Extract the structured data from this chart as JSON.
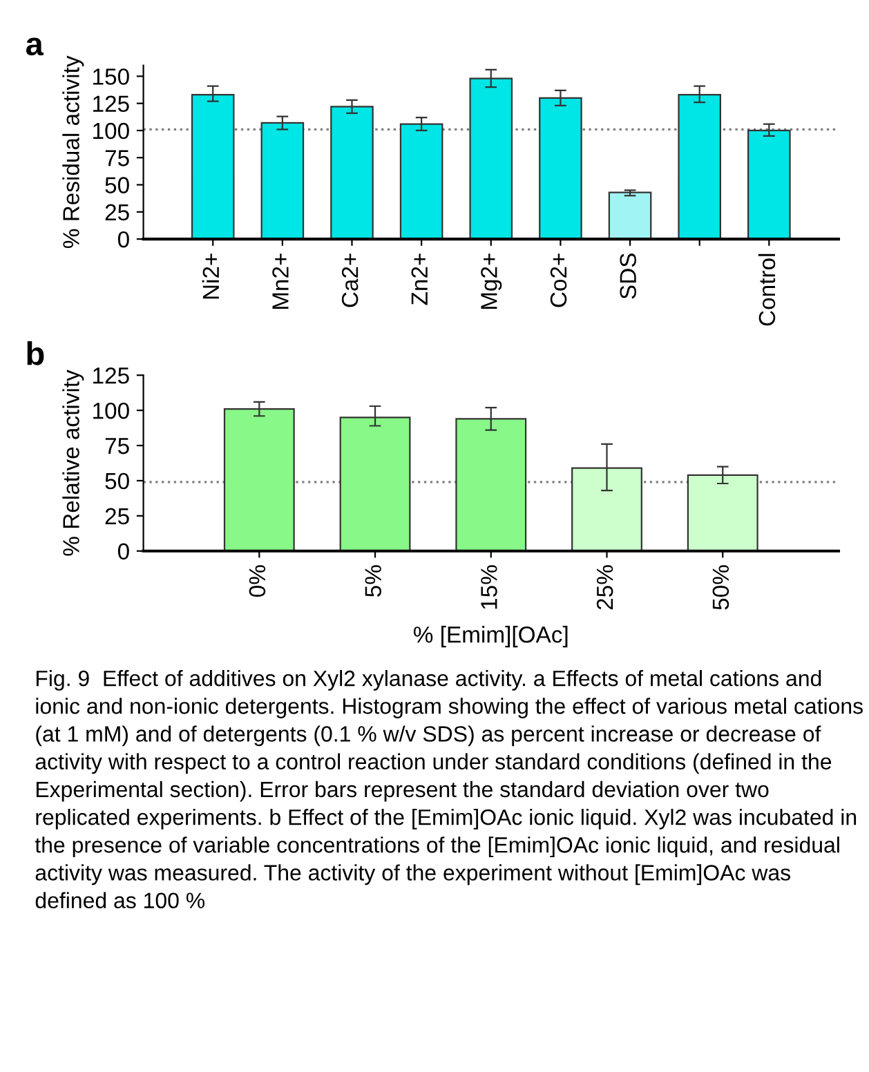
{
  "chart_data": [
    {
      "type": "bar",
      "title": "a",
      "ylabel": "% Residual activity",
      "categories": [
        "Ni2+",
        "Mn2+",
        "Ca2+",
        "Zn2+",
        "Mg2+",
        "Co2+",
        "SDS",
        null,
        "Control"
      ],
      "values": [
        133,
        107,
        122,
        106,
        148,
        130,
        43,
        133,
        100
      ],
      "errors": [
        [
          127,
          141
        ],
        [
          101,
          113
        ],
        [
          116,
          128
        ],
        [
          100,
          112
        ],
        [
          140,
          156
        ],
        [
          123,
          137
        ],
        [
          40,
          45
        ],
        [
          126,
          141
        ],
        [
          95,
          106
        ]
      ],
      "colors": [
        "#00e5e5",
        "#00e5e5",
        "#00e5e5",
        "#00e5e5",
        "#00e5e5",
        "#00e5e5",
        "#a0f4f4",
        "#00e5e5",
        "#00e5e5"
      ],
      "ylim": [
        0,
        160
      ],
      "yticks": [
        0,
        25,
        50,
        75,
        100,
        125,
        150
      ],
      "ref_lines": [
        {
          "axis": "y",
          "value": 101,
          "label": null,
          "color": "#808080",
          "line_style": "dotted"
        }
      ],
      "grid": false,
      "legend": false
    },
    {
      "type": "bar",
      "title": "b",
      "ylabel": "% Relative activity",
      "xlabel": "% [Emim][OAc]",
      "categories": [
        "0%",
        "5%",
        "15%",
        "25%",
        "50%"
      ],
      "values": [
        101,
        95,
        94,
        59,
        54
      ],
      "errors": [
        [
          96,
          106
        ],
        [
          89,
          103
        ],
        [
          86,
          102
        ],
        [
          43,
          76
        ],
        [
          48,
          60
        ]
      ],
      "colors": [
        "#88f888",
        "#88f888",
        "#88f888",
        "#ccffcc",
        "#ccffcc"
      ],
      "ylim": [
        0,
        125
      ],
      "yticks": [
        0,
        25,
        50,
        75,
        100,
        125
      ],
      "ref_lines": [
        {
          "axis": "y",
          "value": 49,
          "label": null,
          "color": "#808080",
          "line_style": "dotted"
        }
      ],
      "grid": false,
      "legend": false,
      "annotations": [
        "Fig. 9  Effect of additives on Xyl2 xylanase activity. a Effects of metal cations and ionic and non-ionic detergents. Histogram showing the effect of various metal cations (at 1 mM) and of detergents (0.1 % w/v SDS) as percent increase or decrease of activity with respect to a control reaction under standard conditions (defined in the Experimental section). Error bars represent the standard deviation over two replicated experiments. b Effect of the [Emim]OAc ionic liquid. Xyl2 was incubated in the presence of variable concentrations of the [Emim]OAc ionic liquid, and residual activity was measured. The activity of the experiment without [Emim]OAc was defined as 100 %"
      ]
    }
  ]
}
